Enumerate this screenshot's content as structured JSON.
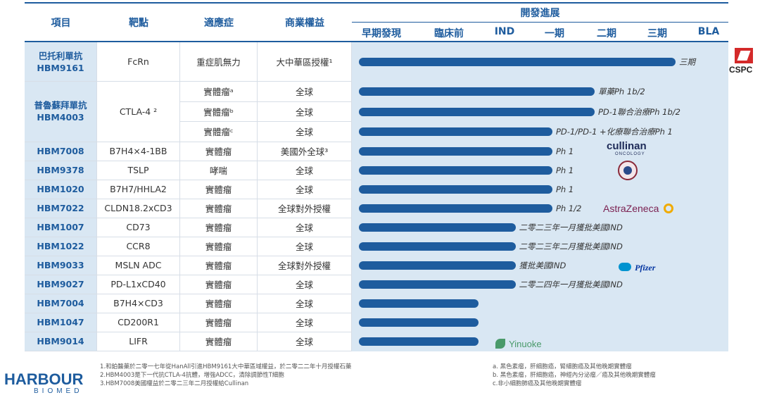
{
  "headers": {
    "project": "項目",
    "target": "靶點",
    "indication": "適應症",
    "rights": "商業權益",
    "development": "開發進展",
    "stages": [
      "早期發現",
      "臨床前",
      "IND",
      "一期",
      "二期",
      "三期",
      "BLA"
    ]
  },
  "rows": [
    {
      "name": "巴托利單抗",
      "code": "HBM9161",
      "target": "FcRn",
      "subs": [
        {
          "indication": "重症肌無力",
          "rights": "大中華區授權¹",
          "progress": 0.9,
          "label": "三期"
        }
      ]
    },
    {
      "name": "普魯蘇拜單抗",
      "code": "HBM4003",
      "target": "CTLA-4 ²",
      "subs": [
        {
          "indication": "實體瘤ᵃ",
          "rights": "全球",
          "progress": 0.67,
          "label": "單藥Ph 1b/2"
        },
        {
          "indication": "實體瘤ᵇ",
          "rights": "全球",
          "progress": 0.67,
          "label": "PD-1聯合治療Ph 1b/2"
        },
        {
          "indication": "實體瘤ᶜ",
          "rights": "全球",
          "progress": 0.55,
          "label": "PD-1/PD-1 +化療聯合治療Ph 1"
        }
      ]
    },
    {
      "code": "HBM7008",
      "target": "B7H4×4-1BB",
      "subs": [
        {
          "indication": "實體瘤",
          "rights": "美國外全球³",
          "progress": 0.55,
          "label": "Ph 1"
        }
      ]
    },
    {
      "code": "HBM9378",
      "target": "TSLP",
      "subs": [
        {
          "indication": "哮喘",
          "rights": "全球",
          "progress": 0.55,
          "label": "Ph 1"
        }
      ]
    },
    {
      "code": "HBM1020",
      "target": "B7H7/HHLA2",
      "subs": [
        {
          "indication": "實體瘤",
          "rights": "全球",
          "progress": 0.55,
          "label": "Ph 1"
        }
      ]
    },
    {
      "code": "HBM7022",
      "target": "CLDN18.2xCD3",
      "subs": [
        {
          "indication": "實體瘤",
          "rights": "全球對外授權",
          "progress": 0.55,
          "label": "Ph 1/2"
        }
      ]
    },
    {
      "code": "HBM1007",
      "target": "CD73",
      "subs": [
        {
          "indication": "實體瘤",
          "rights": "全球",
          "progress": 0.445,
          "label": "二零二三年一月獲批美國IND"
        }
      ]
    },
    {
      "code": "HBM1022",
      "target": "CCR8",
      "subs": [
        {
          "indication": "實體瘤",
          "rights": "全球",
          "progress": 0.445,
          "label": "二零二三年二月獲批美國IND"
        }
      ]
    },
    {
      "code": "HBM9033",
      "target": "MSLN ADC",
      "subs": [
        {
          "indication": "實體瘤",
          "rights": "全球對外授權",
          "progress": 0.445,
          "label": "獲批美國IND"
        }
      ]
    },
    {
      "code": "HBM9027",
      "target": "PD-L1xCD40",
      "subs": [
        {
          "indication": "實體瘤",
          "rights": "全球",
          "progress": 0.445,
          "label": "二零二四年一月獲批美國IND"
        }
      ]
    },
    {
      "code": "HBM7004",
      "target": "B7H4×CD3",
      "subs": [
        {
          "indication": "實體瘤",
          "rights": "全球",
          "progress": 0.34,
          "label": ""
        }
      ]
    },
    {
      "code": "HBM1047",
      "target": "CD200R1",
      "subs": [
        {
          "indication": "實體瘤",
          "rights": "全球",
          "progress": 0.34,
          "label": ""
        }
      ]
    },
    {
      "code": "HBM9014",
      "target": "LIFR",
      "subs": [
        {
          "indication": "實體瘤",
          "rights": "全球",
          "progress": 0.34,
          "label": ""
        }
      ]
    }
  ],
  "partners": {
    "cspc": "CSPC",
    "cullinan": "cullinan",
    "cullinan_sub": "ONCOLOGY",
    "astrazeneca": "AstraZeneca",
    "pfizer": "Pfizer",
    "yinuoke": "Yinuoke"
  },
  "footnotes_left": [
    "1.和鉑醫藥於二零一七年從HanAll引進HBM9161大中華區域權益，於二零二二年十月授權石藥",
    "2.HBM4003是下一代抗CTLA-4抗體，增強ADCC，清除調節性T細胞",
    "3.HBM7008美國權益於二零二三年二月授權給Cullinan"
  ],
  "footnotes_right": [
    "a. 黑色素瘤，肝細胞癌，腎細胞癌及其他晚期實體瘤",
    "b. 黑色素瘤，肝細胞癌，神經內分泌瘤／癌及其他晚期實體瘤",
    "c.非小細胞肺癌及其他晚期實體瘤"
  ],
  "logo": {
    "line1": "HARBOUR",
    "line2": "BIOMED"
  },
  "colors": {
    "accent": "#1e5c9e",
    "light": "#d9e7f3"
  }
}
